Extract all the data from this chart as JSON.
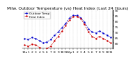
{
  "title": "Milw. Outdoor Temperature (vs) Heat Index (Last 24 Hours)",
  "line1_label": "Outdoor Temp",
  "line2_label": "Heat Index",
  "line1_color": "#0000cc",
  "line2_color": "#cc0000",
  "background_color": "#ffffff",
  "ylim": [
    55,
    90
  ],
  "yticks": [
    60,
    65,
    70,
    75,
    80,
    85,
    90
  ],
  "x": [
    0,
    1,
    2,
    3,
    4,
    5,
    6,
    7,
    8,
    9,
    10,
    11,
    12,
    13,
    14,
    15,
    16,
    17,
    18,
    19,
    20,
    21,
    22,
    23
  ],
  "temp": [
    64,
    63,
    65,
    64,
    62,
    60,
    61,
    63,
    67,
    70,
    74,
    78,
    83,
    85,
    85,
    83,
    79,
    73,
    70,
    69,
    71,
    69,
    67,
    65
  ],
  "heat": [
    58,
    57,
    59,
    58,
    56,
    54,
    55,
    57,
    62,
    66,
    71,
    76,
    81,
    84,
    84,
    82,
    77,
    70,
    66,
    64,
    66,
    64,
    62,
    60
  ],
  "x_tick_labels": [
    "12a",
    "1",
    "2",
    "3",
    "4",
    "5",
    "6",
    "7",
    "8",
    "9",
    "10",
    "11",
    "12p",
    "1",
    "2",
    "3",
    "4",
    "5",
    "6",
    "7",
    "8",
    "9",
    "10",
    "11"
  ],
  "grid_color": "#888888",
  "title_fontsize": 4.2,
  "tick_fontsize": 3.2,
  "legend_fontsize": 3.0
}
